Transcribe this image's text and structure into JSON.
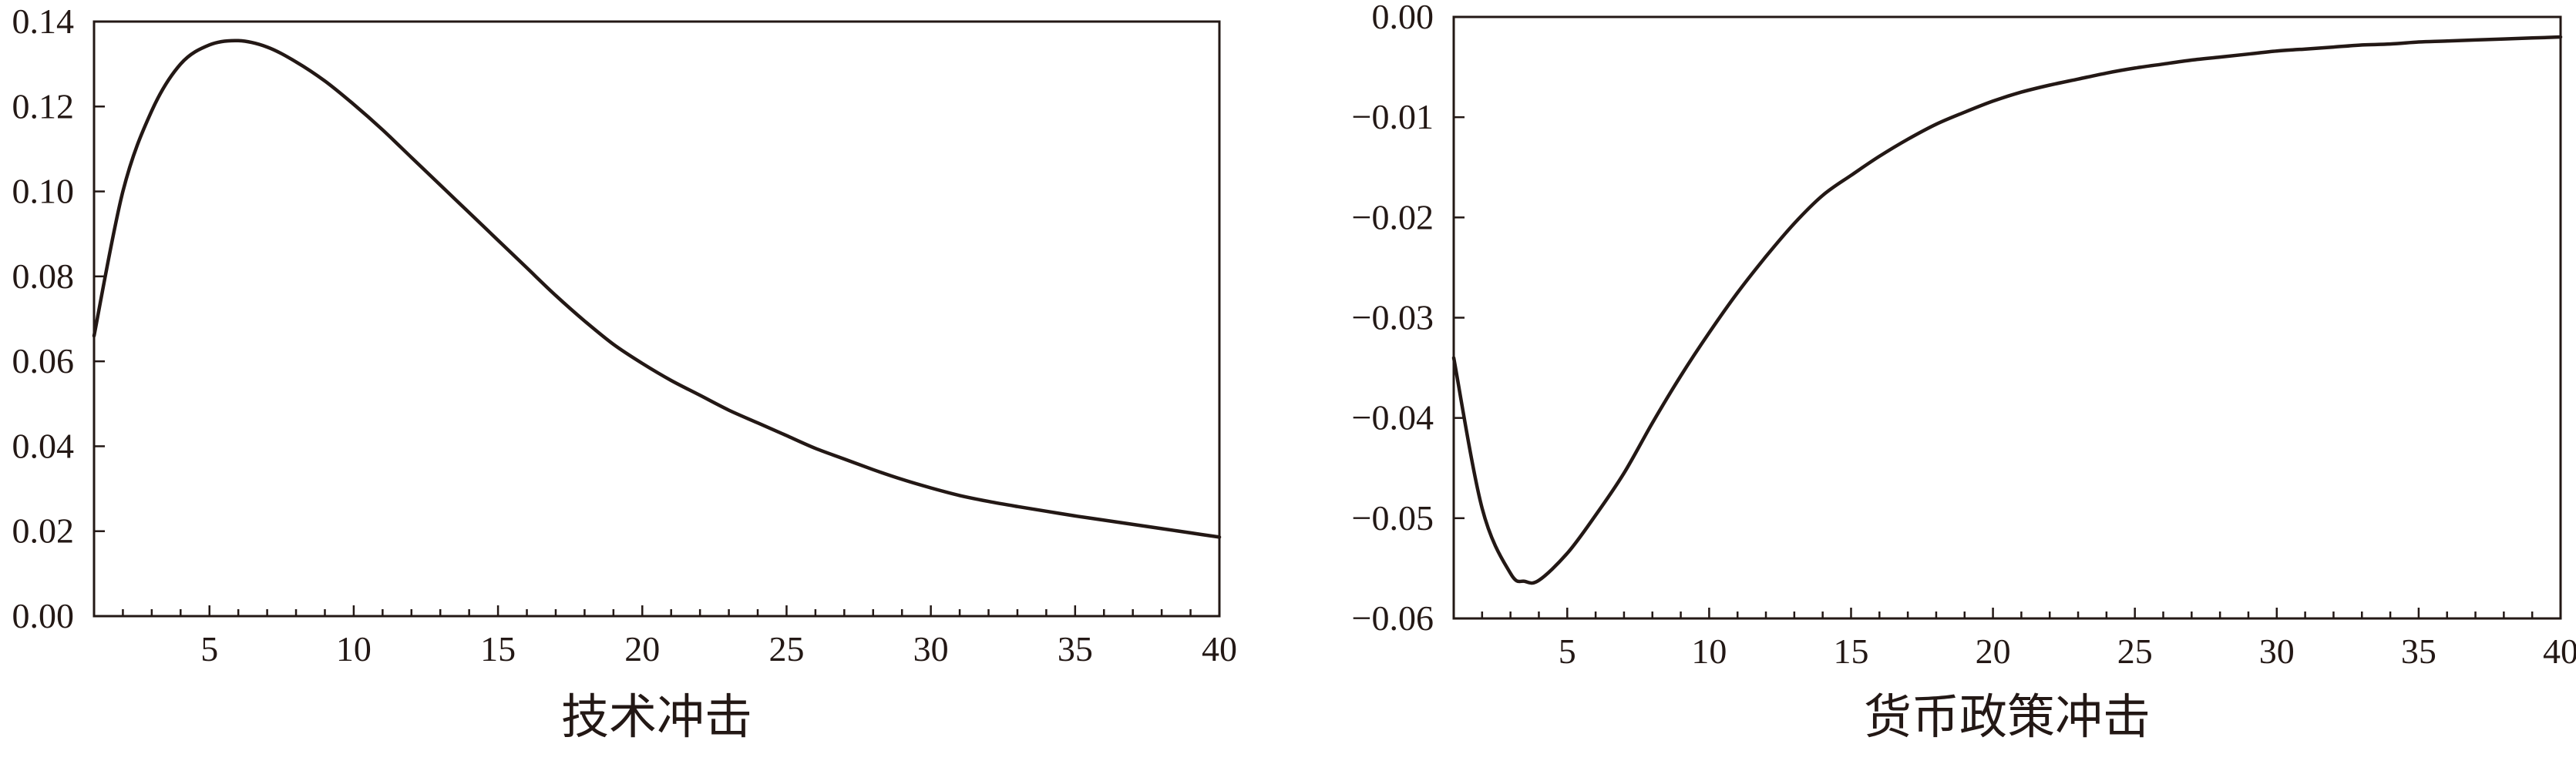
{
  "chart_data": [
    {
      "type": "line",
      "title": "技术冲击",
      "xlabel": "",
      "ylabel": "",
      "xlim": [
        1,
        40
      ],
      "ylim": [
        0,
        0.14
      ],
      "xticks": [
        5,
        10,
        15,
        20,
        25,
        30,
        35,
        40
      ],
      "xtick_labels": [
        "5",
        "10",
        "15",
        "20",
        "25",
        "30",
        "35",
        "40"
      ],
      "yticks": [
        0,
        0.02,
        0.04,
        0.06,
        0.08,
        0.1,
        0.12,
        0.14
      ],
      "ytick_labels": [
        "0.00",
        "0.02",
        "0.04",
        "0.06",
        "0.08",
        "0.10",
        "0.12",
        "0.14"
      ],
      "grid": false,
      "series": [
        {
          "x": [
            1,
            2,
            3,
            4,
            5,
            6,
            7,
            8,
            9,
            10,
            11,
            12,
            13,
            14,
            15,
            16,
            17,
            18,
            19,
            20,
            21,
            22,
            23,
            24,
            25,
            26,
            27,
            28,
            29,
            30,
            31,
            32,
            33,
            34,
            35,
            36,
            37,
            38,
            39,
            40
          ],
          "values": [
            0.066,
            0.1,
            0.119,
            0.13,
            0.1345,
            0.1355,
            0.134,
            0.1305,
            0.126,
            0.1205,
            0.1145,
            0.108,
            0.1015,
            0.095,
            0.0885,
            0.082,
            0.0755,
            0.0695,
            0.064,
            0.0595,
            0.0555,
            0.052,
            0.0485,
            0.0455,
            0.0425,
            0.0395,
            0.037,
            0.0345,
            0.0322,
            0.0302,
            0.0284,
            0.027,
            0.0258,
            0.0247,
            0.0236,
            0.0226,
            0.0216,
            0.0206,
            0.0196,
            0.0186
          ]
        }
      ]
    },
    {
      "type": "line",
      "title": "货币政策冲击",
      "xlabel": "",
      "ylabel": "",
      "xlim": [
        1,
        40
      ],
      "ylim": [
        -0.06,
        0
      ],
      "xticks": [
        5,
        10,
        15,
        20,
        25,
        30,
        35,
        40
      ],
      "xtick_labels": [
        "5",
        "10",
        "15",
        "20",
        "25",
        "30",
        "35",
        "40"
      ],
      "yticks": [
        0,
        -0.01,
        -0.02,
        -0.03,
        -0.04,
        -0.05,
        -0.06
      ],
      "ytick_labels": [
        "0.00",
        "−0.01",
        "−0.02",
        "−0.03",
        "−0.04",
        "−0.05",
        "−0.06"
      ],
      "grid": false,
      "series": [
        {
          "x": [
            1,
            2,
            3,
            3.5,
            4,
            5,
            6,
            7,
            8,
            9,
            10,
            11,
            12,
            13,
            14,
            15,
            16,
            17,
            18,
            19,
            20,
            21,
            22,
            23,
            24,
            25,
            26,
            27,
            28,
            29,
            30,
            31,
            32,
            33,
            34,
            35,
            36,
            37,
            38,
            39,
            40
          ],
          "values": [
            -0.034,
            -0.049,
            -0.0555,
            -0.0563,
            -0.0562,
            -0.0535,
            -0.0497,
            -0.0455,
            -0.0405,
            -0.0358,
            -0.0315,
            -0.0275,
            -0.0239,
            -0.0206,
            -0.0178,
            -0.0158,
            -0.0139,
            -0.0122,
            -0.0107,
            -0.0095,
            -0.0084,
            -0.0075,
            -0.0068,
            -0.0062,
            -0.0056,
            -0.0051,
            -0.0047,
            -0.0043,
            -0.004,
            -0.0037,
            -0.0034,
            -0.0032,
            -0.003,
            -0.0028,
            -0.0027,
            -0.0025,
            -0.0024,
            -0.0023,
            -0.0022,
            -0.0021,
            -0.002
          ]
        }
      ]
    }
  ]
}
